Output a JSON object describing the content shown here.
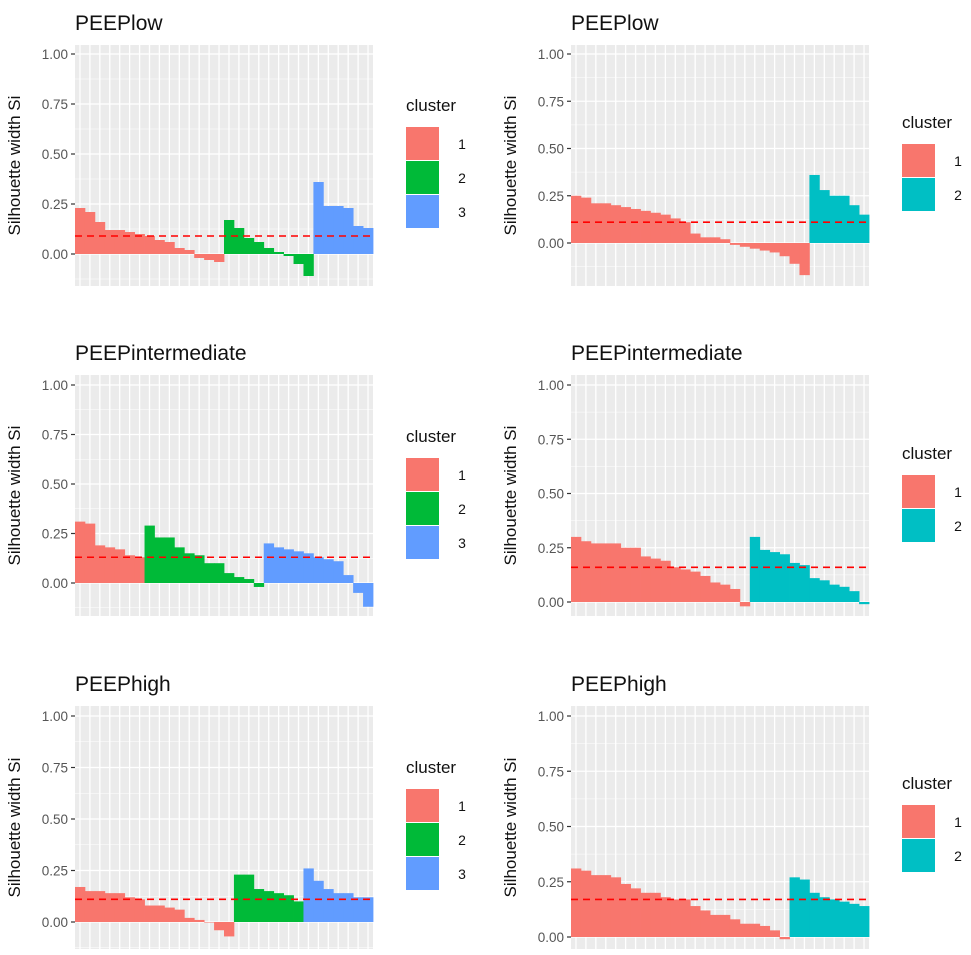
{
  "chart_data": [
    {
      "type": "bar",
      "title": "PEEPlow",
      "xlabel": "",
      "ylabel": "Silhouette width Si",
      "ylim": [
        -0.16,
        1.05
      ],
      "yticks": [
        "0.00",
        "0.25",
        "0.50",
        "0.75",
        "1.00"
      ],
      "grid": true,
      "legend": {
        "title": "cluster",
        "position": "right"
      },
      "average_silhouette": 0.09,
      "series": [
        {
          "name": "1",
          "color": "#F8766D",
          "values": [
            0.23,
            0.21,
            0.16,
            0.12,
            0.12,
            0.11,
            0.1,
            0.09,
            0.07,
            0.06,
            0.03,
            0.02,
            -0.02,
            -0.03,
            -0.04
          ]
        },
        {
          "name": "2",
          "color": "#00BA38",
          "values": [
            0.17,
            0.13,
            0.08,
            0.06,
            0.03,
            0.01,
            -0.01,
            -0.05,
            -0.11
          ]
        },
        {
          "name": "3",
          "color": "#619CFF",
          "values": [
            0.36,
            0.24,
            0.24,
            0.23,
            0.14,
            0.13
          ]
        }
      ]
    },
    {
      "type": "bar",
      "title": "PEEPlow",
      "xlabel": "",
      "ylabel": "Silhouette width Si",
      "ylim": [
        -0.2,
        1.05
      ],
      "yticks": [
        "0.00",
        "0.25",
        "0.50",
        "0.75",
        "1.00"
      ],
      "grid": true,
      "legend": {
        "title": "cluster",
        "position": "right"
      },
      "average_silhouette": 0.11,
      "series": [
        {
          "name": "1",
          "color": "#F8766D",
          "values": [
            0.25,
            0.24,
            0.21,
            0.21,
            0.2,
            0.19,
            0.18,
            0.17,
            0.16,
            0.15,
            0.13,
            0.11,
            0.05,
            0.03,
            0.03,
            0.02,
            -0.01,
            -0.02,
            -0.03,
            -0.04,
            -0.05,
            -0.07,
            -0.11,
            -0.17
          ]
        },
        {
          "name": "2",
          "color": "#00BFC4",
          "values": [
            0.36,
            0.28,
            0.25,
            0.25,
            0.2,
            0.15
          ]
        }
      ]
    },
    {
      "type": "bar",
      "title": "PEEPintermediate",
      "xlabel": "",
      "ylabel": "Silhouette width Si",
      "ylim": [
        -0.16,
        1.05
      ],
      "yticks": [
        "0.00",
        "0.25",
        "0.50",
        "0.75",
        "1.00"
      ],
      "grid": true,
      "legend": {
        "title": "cluster",
        "position": "right"
      },
      "average_silhouette": 0.13,
      "series": [
        {
          "name": "1",
          "color": "#F8766D",
          "values": [
            0.31,
            0.3,
            0.19,
            0.18,
            0.17,
            0.14,
            0.13
          ]
        },
        {
          "name": "2",
          "color": "#00BA38",
          "values": [
            0.29,
            0.23,
            0.23,
            0.18,
            0.15,
            0.14,
            0.1,
            0.1,
            0.05,
            0.03,
            0.02,
            -0.02
          ]
        },
        {
          "name": "3",
          "color": "#619CFF",
          "values": [
            0.2,
            0.18,
            0.17,
            0.16,
            0.15,
            0.13,
            0.12,
            0.11,
            0.04,
            -0.05,
            -0.12
          ]
        }
      ]
    },
    {
      "type": "bar",
      "title": "PEEPintermediate",
      "xlabel": "",
      "ylabel": "Silhouette width Si",
      "ylim": [
        -0.05,
        1.05
      ],
      "yticks": [
        "0.00",
        "0.25",
        "0.50",
        "0.75",
        "1.00"
      ],
      "grid": true,
      "legend": {
        "title": "cluster",
        "position": "right"
      },
      "average_silhouette": 0.16,
      "series": [
        {
          "name": "1",
          "color": "#F8766D",
          "values": [
            0.3,
            0.28,
            0.27,
            0.27,
            0.27,
            0.25,
            0.25,
            0.21,
            0.2,
            0.19,
            0.16,
            0.15,
            0.14,
            0.12,
            0.09,
            0.08,
            0.06,
            -0.02
          ]
        },
        {
          "name": "2",
          "color": "#00BFC4",
          "values": [
            0.3,
            0.24,
            0.23,
            0.22,
            0.18,
            0.17,
            0.11,
            0.1,
            0.08,
            0.07,
            0.05,
            -0.01
          ]
        }
      ]
    },
    {
      "type": "bar",
      "title": "PEEPhigh",
      "xlabel": "",
      "ylabel": "Silhouette width Si",
      "ylim": [
        -0.1,
        1.05
      ],
      "yticks": [
        "0.00",
        "0.25",
        "0.50",
        "0.75",
        "1.00"
      ],
      "grid": true,
      "legend": {
        "title": "cluster",
        "position": "right"
      },
      "average_silhouette": 0.11,
      "series": [
        {
          "name": "1",
          "color": "#F8766D",
          "values": [
            0.17,
            0.15,
            0.15,
            0.14,
            0.14,
            0.12,
            0.11,
            0.08,
            0.08,
            0.07,
            0.06,
            0.02,
            0.01,
            0.0,
            -0.04,
            -0.07
          ]
        },
        {
          "name": "2",
          "color": "#00BA38",
          "values": [
            0.23,
            0.23,
            0.16,
            0.15,
            0.14,
            0.13,
            0.1
          ]
        },
        {
          "name": "3",
          "color": "#619CFF",
          "values": [
            0.26,
            0.2,
            0.16,
            0.14,
            0.14,
            0.12,
            0.12
          ]
        }
      ]
    },
    {
      "type": "bar",
      "title": "PEEPhigh",
      "xlabel": "",
      "ylabel": "Silhouette width Si",
      "ylim": [
        -0.04,
        1.05
      ],
      "yticks": [
        "0.00",
        "0.25",
        "0.50",
        "0.75",
        "1.00"
      ],
      "grid": true,
      "legend": {
        "title": "cluster",
        "position": "right"
      },
      "average_silhouette": 0.17,
      "series": [
        {
          "name": "1",
          "color": "#F8766D",
          "values": [
            0.31,
            0.3,
            0.28,
            0.28,
            0.27,
            0.24,
            0.22,
            0.2,
            0.2,
            0.18,
            0.17,
            0.17,
            0.14,
            0.12,
            0.1,
            0.1,
            0.08,
            0.06,
            0.06,
            0.05,
            0.03,
            -0.01
          ]
        },
        {
          "name": "2",
          "color": "#00BFC4",
          "values": [
            0.27,
            0.26,
            0.2,
            0.18,
            0.17,
            0.16,
            0.15,
            0.14
          ]
        }
      ]
    }
  ],
  "colors": {
    "panel_background": "#EBEBEB",
    "grid": "#FFFFFF",
    "average_line": "#FF0000"
  }
}
